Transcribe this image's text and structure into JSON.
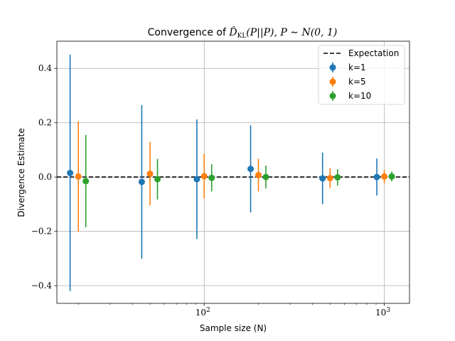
{
  "chart_data": {
    "type": "scatter",
    "title_prefix": "Convergence of ",
    "title_math": "D̂",
    "title_math_sub": "KL",
    "title_suffix": "(P||P), P ∼ N(0, 1)",
    "xlabel": "Sample size (N)",
    "ylabel": "Divergence Estimate",
    "xscale": "log",
    "xlim": [
      15.2,
      1380
    ],
    "ylim": [
      -0.465,
      0.5
    ],
    "grid": true,
    "yticks": [
      -0.4,
      -0.2,
      0.0,
      0.2,
      0.4
    ],
    "ytick_labels": [
      "−0.4",
      "−0.2",
      "0.0",
      "0.2",
      "0.4"
    ],
    "xticks": [
      {
        "value": 100,
        "base": "10",
        "exp": "2"
      },
      {
        "value": 1000,
        "base": "10",
        "exp": "3"
      }
    ],
    "minor_xticks": [
      20,
      30,
      40,
      50,
      60,
      70,
      80,
      90,
      200,
      300,
      400,
      500,
      600,
      700,
      800,
      900
    ],
    "expectation": {
      "label": "Expectation",
      "value": 0.0,
      "color": "#000000"
    },
    "legend_position": "top-right",
    "series": [
      {
        "name": "k=1",
        "color": "#1f77b4",
        "x": [
          18,
          45,
          91,
          181,
          454,
          909
        ],
        "y": [
          0.015,
          -0.018,
          -0.008,
          0.03,
          -0.005,
          0.0
        ],
        "err": [
          0.435,
          0.283,
          0.22,
          0.16,
          0.095,
          0.068
        ]
      },
      {
        "name": "k=5",
        "color": "#ff7f0e",
        "x": [
          20,
          50,
          100,
          200,
          500,
          1000
        ],
        "y": [
          0.002,
          0.012,
          0.003,
          0.007,
          -0.004,
          0.002
        ],
        "err": [
          0.203,
          0.117,
          0.082,
          0.06,
          0.037,
          0.025
        ]
      },
      {
        "name": "k=10",
        "color": "#2ca02c",
        "x": [
          22,
          55,
          110,
          220,
          550,
          1100
        ],
        "y": [
          -0.015,
          -0.008,
          -0.003,
          0.0,
          -0.001,
          0.002
        ],
        "err": [
          0.17,
          0.075,
          0.05,
          0.042,
          0.03,
          0.018
        ]
      }
    ]
  }
}
